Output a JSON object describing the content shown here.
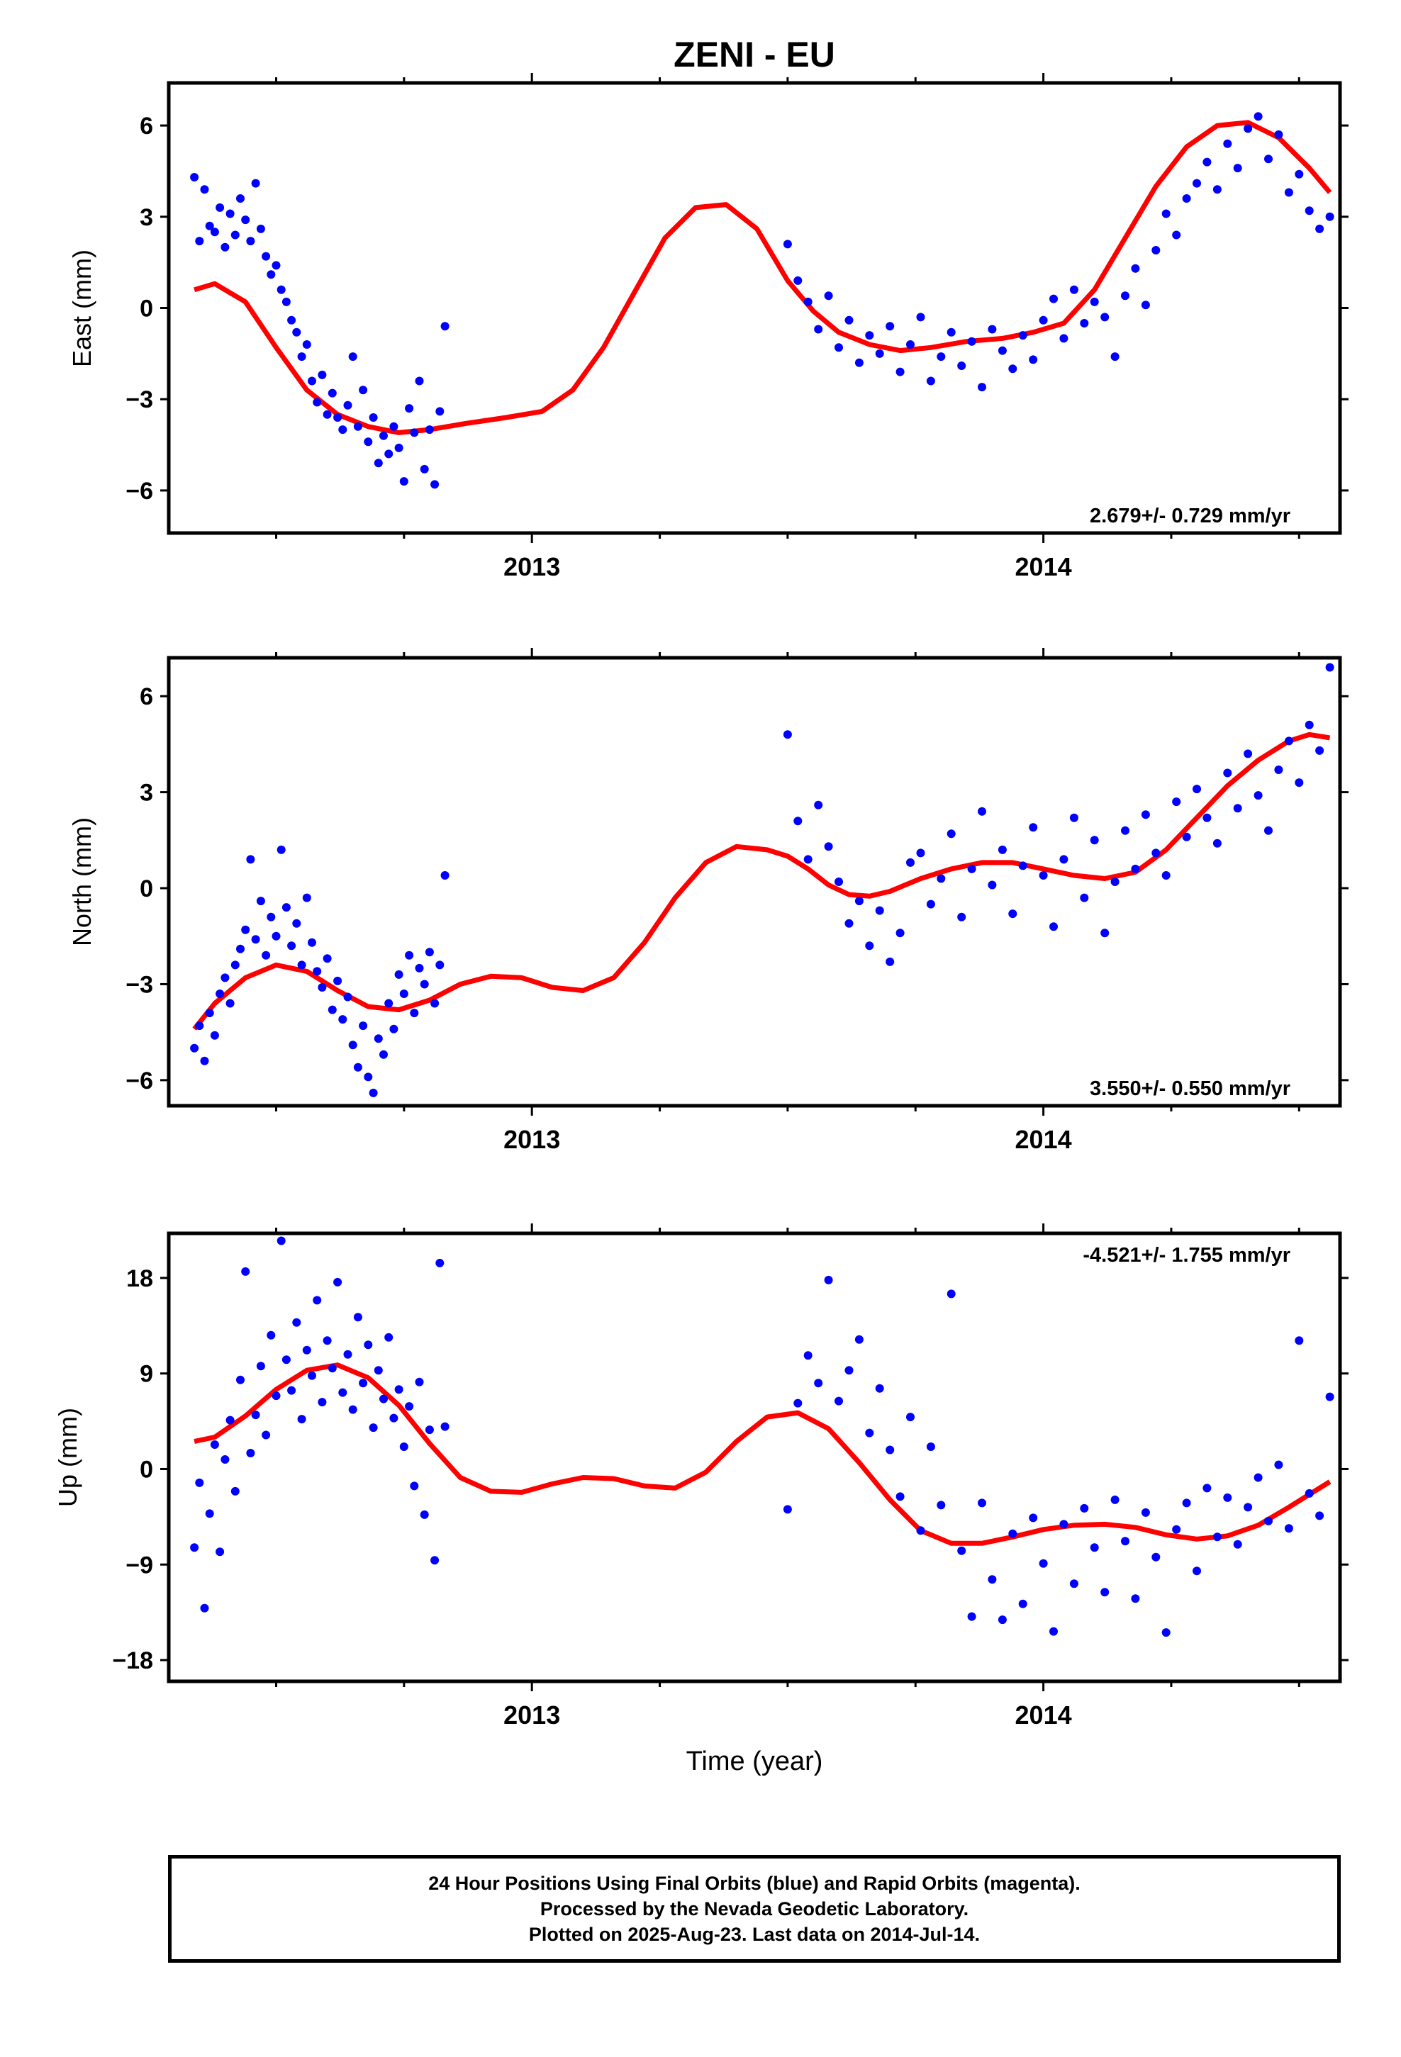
{
  "title": "ZENI - EU",
  "xlabel": "Time (year)",
  "colors": {
    "points": "#0000ff",
    "fit": "#ff0000",
    "frame": "#000000"
  },
  "footer": {
    "line1": "24 Hour Positions Using Final Orbits (blue) and Rapid Orbits (magenta).",
    "line2": "Processed by the Nevada Geodetic Laboratory.",
    "line3": "Plotted on 2025-Aug-23. Last data on 2014-Jul-14."
  },
  "chart_data": [
    {
      "type": "scatter",
      "component": "east",
      "ylabel": "East (mm)",
      "rate_label": "2.679+/- 0.729 mm/yr",
      "xlim": [
        2012.29,
        2014.58
      ],
      "ylim": [
        -7.4,
        7.4
      ],
      "yticks": [
        -6,
        -3,
        0,
        3,
        6
      ],
      "xticks": [
        2013,
        2014
      ],
      "rate_mm_per_yr": 2.679,
      "rate_sigma": 0.729,
      "fit_curve": {
        "x": [
          2012.34,
          2012.38,
          2012.44,
          2012.5,
          2012.56,
          2012.62,
          2012.68,
          2012.74,
          2012.8,
          2012.87,
          2012.95,
          2013.02,
          2013.08,
          2013.14,
          2013.2,
          2013.26,
          2013.32,
          2013.38,
          2013.44,
          2013.5,
          2013.55,
          2013.6,
          2013.66,
          2013.72,
          2013.78,
          2013.85,
          2013.92,
          2013.98,
          2014.04,
          2014.1,
          2014.16,
          2014.22,
          2014.28,
          2014.34,
          2014.4,
          2014.46,
          2014.52,
          2014.56
        ],
        "y": [
          0.6,
          0.8,
          0.2,
          -1.3,
          -2.7,
          -3.5,
          -3.9,
          -4.1,
          -4.0,
          -3.8,
          -3.6,
          -3.4,
          -2.7,
          -1.3,
          0.5,
          2.3,
          3.3,
          3.4,
          2.6,
          0.9,
          -0.1,
          -0.8,
          -1.2,
          -1.4,
          -1.3,
          -1.1,
          -1.0,
          -0.8,
          -0.5,
          0.6,
          2.3,
          4.0,
          5.3,
          6.0,
          6.1,
          5.6,
          4.6,
          3.8
        ]
      },
      "series": [
        {
          "x": [
            2012.34,
            2012.35,
            2012.36,
            2012.37,
            2012.38,
            2012.39,
            2012.4,
            2012.41,
            2012.42,
            2012.43,
            2012.44,
            2012.45,
            2012.46,
            2012.47,
            2012.48,
            2012.49,
            2012.5,
            2012.51,
            2012.52,
            2012.53,
            2012.54,
            2012.55,
            2012.56,
            2012.57,
            2012.58,
            2012.59,
            2012.6,
            2012.61,
            2012.62,
            2012.63,
            2012.64,
            2012.65,
            2012.66,
            2012.67,
            2012.68,
            2012.69,
            2012.7,
            2012.71,
            2012.72,
            2012.73,
            2012.74,
            2012.75,
            2012.76,
            2012.77,
            2012.78,
            2012.79,
            2012.8,
            2012.81,
            2012.82,
            2012.83,
            2013.5,
            2013.52,
            2013.54,
            2013.56,
            2013.58,
            2013.6,
            2013.62,
            2013.64,
            2013.66,
            2013.68,
            2013.7,
            2013.72,
            2013.74,
            2013.76,
            2013.78,
            2013.8,
            2013.82,
            2013.84,
            2013.86,
            2013.88,
            2013.9,
            2013.92,
            2013.94,
            2013.96,
            2013.98,
            2014.0,
            2014.02,
            2014.04,
            2014.06,
            2014.08,
            2014.1,
            2014.12,
            2014.14,
            2014.16,
            2014.18,
            2014.2,
            2014.22,
            2014.24,
            2014.26,
            2014.28,
            2014.3,
            2014.32,
            2014.34,
            2014.36,
            2014.38,
            2014.4,
            2014.42,
            2014.44,
            2014.46,
            2014.48,
            2014.5,
            2014.52,
            2014.54,
            2014.56
          ],
          "y": [
            4.3,
            2.2,
            3.9,
            2.7,
            2.5,
            3.3,
            2.0,
            3.1,
            2.4,
            3.6,
            2.9,
            2.2,
            4.1,
            2.6,
            1.7,
            1.1,
            1.4,
            0.6,
            0.2,
            -0.4,
            -0.8,
            -1.6,
            -1.2,
            -2.4,
            -3.1,
            -2.2,
            -3.5,
            -2.8,
            -3.6,
            -4.0,
            -3.2,
            -1.6,
            -3.9,
            -2.7,
            -4.4,
            -3.6,
            -5.1,
            -4.2,
            -4.8,
            -3.9,
            -4.6,
            -5.7,
            -3.3,
            -4.1,
            -2.4,
            -5.3,
            -4.0,
            -5.8,
            -3.4,
            -0.6,
            2.1,
            0.9,
            0.2,
            -0.7,
            0.4,
            -1.3,
            -0.4,
            -1.8,
            -0.9,
            -1.5,
            -0.6,
            -2.1,
            -1.2,
            -0.3,
            -2.4,
            -1.6,
            -0.8,
            -1.9,
            -1.1,
            -2.6,
            -0.7,
            -1.4,
            -2.0,
            -0.9,
            -1.7,
            -0.4,
            0.3,
            -1.0,
            0.6,
            -0.5,
            0.2,
            -0.3,
            -1.6,
            0.4,
            1.3,
            0.1,
            1.9,
            3.1,
            2.4,
            3.6,
            4.1,
            4.8,
            3.9,
            5.4,
            4.6,
            5.9,
            6.3,
            4.9,
            5.7,
            3.8,
            4.4,
            3.2,
            2.6,
            3.0
          ]
        }
      ]
    },
    {
      "type": "scatter",
      "component": "north",
      "ylabel": "North (mm)",
      "rate_label": "3.550+/- 0.550 mm/yr",
      "xlim": [
        2012.29,
        2014.58
      ],
      "ylim": [
        -6.8,
        7.2
      ],
      "yticks": [
        -6,
        -3,
        0,
        3,
        6
      ],
      "xticks": [
        2013,
        2014
      ],
      "rate_mm_per_yr": 3.55,
      "rate_sigma": 0.55,
      "fit_curve": {
        "x": [
          2012.34,
          2012.38,
          2012.44,
          2012.5,
          2012.56,
          2012.62,
          2012.68,
          2012.74,
          2012.8,
          2012.86,
          2012.92,
          2012.98,
          2013.04,
          2013.1,
          2013.16,
          2013.22,
          2013.28,
          2013.34,
          2013.4,
          2013.46,
          2013.5,
          2013.54,
          2013.58,
          2013.62,
          2013.66,
          2013.7,
          2013.76,
          2013.82,
          2013.88,
          2013.94,
          2014.0,
          2014.06,
          2014.12,
          2014.18,
          2014.24,
          2014.3,
          2014.36,
          2014.42,
          2014.48,
          2014.52,
          2014.56
        ],
        "y": [
          -4.4,
          -3.6,
          -2.8,
          -2.4,
          -2.6,
          -3.2,
          -3.7,
          -3.8,
          -3.5,
          -3.0,
          -2.75,
          -2.8,
          -3.1,
          -3.2,
          -2.8,
          -1.7,
          -0.3,
          0.8,
          1.3,
          1.2,
          1.0,
          0.6,
          0.1,
          -0.2,
          -0.25,
          -0.1,
          0.3,
          0.6,
          0.8,
          0.8,
          0.6,
          0.4,
          0.3,
          0.5,
          1.2,
          2.2,
          3.2,
          4.0,
          4.6,
          4.8,
          4.7
        ]
      },
      "series": [
        {
          "x": [
            2012.34,
            2012.35,
            2012.36,
            2012.37,
            2012.38,
            2012.39,
            2012.4,
            2012.41,
            2012.42,
            2012.43,
            2012.44,
            2012.45,
            2012.46,
            2012.47,
            2012.48,
            2012.49,
            2012.5,
            2012.51,
            2012.52,
            2012.53,
            2012.54,
            2012.55,
            2012.56,
            2012.57,
            2012.58,
            2012.59,
            2012.6,
            2012.61,
            2012.62,
            2012.63,
            2012.64,
            2012.65,
            2012.66,
            2012.67,
            2012.68,
            2012.69,
            2012.7,
            2012.71,
            2012.72,
            2012.73,
            2012.74,
            2012.75,
            2012.76,
            2012.77,
            2012.78,
            2012.79,
            2012.8,
            2012.81,
            2012.82,
            2012.83,
            2013.5,
            2013.52,
            2013.54,
            2013.56,
            2013.58,
            2013.6,
            2013.62,
            2013.64,
            2013.66,
            2013.68,
            2013.7,
            2013.72,
            2013.74,
            2013.76,
            2013.78,
            2013.8,
            2013.82,
            2013.84,
            2013.86,
            2013.88,
            2013.9,
            2013.92,
            2013.94,
            2013.96,
            2013.98,
            2014.0,
            2014.02,
            2014.04,
            2014.06,
            2014.08,
            2014.1,
            2014.12,
            2014.14,
            2014.16,
            2014.18,
            2014.2,
            2014.22,
            2014.24,
            2014.26,
            2014.28,
            2014.3,
            2014.32,
            2014.34,
            2014.36,
            2014.38,
            2014.4,
            2014.42,
            2014.44,
            2014.46,
            2014.48,
            2014.5,
            2014.52,
            2014.54,
            2014.56
          ],
          "y": [
            -5.0,
            -4.3,
            -5.4,
            -3.9,
            -4.6,
            -3.3,
            -2.8,
            -3.6,
            -2.4,
            -1.9,
            -1.3,
            0.9,
            -1.6,
            -0.4,
            -2.1,
            -0.9,
            -1.5,
            1.2,
            -0.6,
            -1.8,
            -1.1,
            -2.4,
            -0.3,
            -1.7,
            -2.6,
            -3.1,
            -2.2,
            -3.8,
            -2.9,
            -4.1,
            -3.4,
            -4.9,
            -5.6,
            -4.3,
            -5.9,
            -6.4,
            -4.7,
            -5.2,
            -3.6,
            -4.4,
            -2.7,
            -3.3,
            -2.1,
            -3.9,
            -2.5,
            -3.0,
            -2.0,
            -3.6,
            -2.4,
            0.4,
            4.8,
            2.1,
            0.9,
            2.6,
            1.3,
            0.2,
            -1.1,
            -0.4,
            -1.8,
            -0.7,
            -2.3,
            -1.4,
            0.8,
            1.1,
            -0.5,
            0.3,
            1.7,
            -0.9,
            0.6,
            2.4,
            0.1,
            1.2,
            -0.8,
            0.7,
            1.9,
            0.4,
            -1.2,
            0.9,
            2.2,
            -0.3,
            1.5,
            -1.4,
            0.2,
            1.8,
            0.6,
            2.3,
            1.1,
            0.4,
            2.7,
            1.6,
            3.1,
            2.2,
            1.4,
            3.6,
            2.5,
            4.2,
            2.9,
            1.8,
            3.7,
            4.6,
            3.3,
            5.1,
            4.3,
            6.9
          ]
        }
      ]
    },
    {
      "type": "scatter",
      "component": "up",
      "ylabel": "Up (mm)",
      "rate_label": "-4.521+/- 1.755 mm/yr",
      "xlim": [
        2012.29,
        2014.58
      ],
      "ylim": [
        -20,
        22.2
      ],
      "yticks": [
        -18,
        -9,
        0,
        9,
        18
      ],
      "xticks": [
        2013,
        2014
      ],
      "rate_mm_per_yr": -4.521,
      "rate_sigma": 1.755,
      "fit_curve": {
        "x": [
          2012.34,
          2012.38,
          2012.44,
          2012.5,
          2012.56,
          2012.62,
          2012.68,
          2012.74,
          2012.8,
          2012.86,
          2012.92,
          2012.98,
          2013.04,
          2013.1,
          2013.16,
          2013.22,
          2013.28,
          2013.34,
          2013.4,
          2013.46,
          2013.52,
          2013.58,
          2013.64,
          2013.7,
          2013.76,
          2013.82,
          2013.88,
          2013.94,
          2014.0,
          2014.06,
          2014.12,
          2014.18,
          2014.24,
          2014.3,
          2014.36,
          2014.42,
          2014.48,
          2014.52,
          2014.56
        ],
        "y": [
          2.6,
          3.0,
          5.0,
          7.5,
          9.3,
          9.8,
          8.6,
          6.0,
          2.4,
          -0.8,
          -2.1,
          -2.2,
          -1.4,
          -0.8,
          -0.9,
          -1.6,
          -1.8,
          -0.3,
          2.6,
          4.9,
          5.3,
          3.8,
          0.6,
          -2.9,
          -5.8,
          -7.0,
          -7.0,
          -6.4,
          -5.7,
          -5.3,
          -5.2,
          -5.5,
          -6.2,
          -6.6,
          -6.3,
          -5.3,
          -3.6,
          -2.4,
          -1.2
        ]
      },
      "series": [
        {
          "x": [
            2012.34,
            2012.35,
            2012.36,
            2012.37,
            2012.38,
            2012.39,
            2012.4,
            2012.41,
            2012.42,
            2012.43,
            2012.44,
            2012.45,
            2012.46,
            2012.47,
            2012.48,
            2012.49,
            2012.5,
            2012.51,
            2012.52,
            2012.53,
            2012.54,
            2012.55,
            2012.56,
            2012.57,
            2012.58,
            2012.59,
            2012.6,
            2012.61,
            2012.62,
            2012.63,
            2012.64,
            2012.65,
            2012.66,
            2012.67,
            2012.68,
            2012.69,
            2012.7,
            2012.71,
            2012.72,
            2012.73,
            2012.74,
            2012.75,
            2012.76,
            2012.77,
            2012.78,
            2012.79,
            2012.8,
            2012.81,
            2012.82,
            2012.83,
            2013.5,
            2013.52,
            2013.54,
            2013.56,
            2013.58,
            2013.6,
            2013.62,
            2013.64,
            2013.66,
            2013.68,
            2013.7,
            2013.72,
            2013.74,
            2013.76,
            2013.78,
            2013.8,
            2013.82,
            2013.84,
            2013.86,
            2013.88,
            2013.9,
            2013.92,
            2013.94,
            2013.96,
            2013.98,
            2014.0,
            2014.02,
            2014.04,
            2014.06,
            2014.08,
            2014.1,
            2014.12,
            2014.14,
            2014.16,
            2014.18,
            2014.2,
            2014.22,
            2014.24,
            2014.26,
            2014.28,
            2014.3,
            2014.32,
            2014.34,
            2014.36,
            2014.38,
            2014.4,
            2014.42,
            2014.44,
            2014.46,
            2014.48,
            2014.5,
            2014.52,
            2014.54,
            2014.56
          ],
          "y": [
            -7.4,
            -1.3,
            -13.1,
            -4.2,
            2.3,
            -7.8,
            0.9,
            4.6,
            -2.1,
            8.4,
            18.6,
            1.5,
            5.1,
            9.7,
            3.2,
            12.6,
            6.9,
            21.5,
            10.3,
            7.4,
            13.8,
            4.7,
            11.2,
            8.8,
            15.9,
            6.3,
            12.1,
            9.5,
            17.6,
            7.2,
            10.8,
            5.6,
            14.3,
            8.1,
            11.7,
            3.9,
            9.3,
            6.6,
            12.4,
            4.8,
            7.5,
            2.1,
            5.9,
            -1.6,
            8.2,
            -4.3,
            3.7,
            -8.6,
            19.4,
            4.0,
            -3.8,
            6.2,
            10.7,
            8.1,
            17.8,
            6.4,
            9.3,
            12.2,
            3.4,
            7.6,
            1.8,
            -2.6,
            4.9,
            -5.8,
            2.1,
            -3.4,
            16.5,
            -7.7,
            -13.9,
            -3.2,
            -10.4,
            -14.2,
            -6.1,
            -12.7,
            -4.6,
            -8.9,
            -15.3,
            -5.2,
            -10.8,
            -3.7,
            -7.4,
            -11.6,
            -2.9,
            -6.8,
            -12.2,
            -4.1,
            -8.3,
            -15.4,
            -5.7,
            -3.2,
            -9.6,
            -1.8,
            -6.4,
            -2.7,
            -7.1,
            -3.6,
            -0.8,
            -4.9,
            0.4,
            -5.6,
            12.1,
            -2.3,
            -4.4,
            6.8
          ]
        }
      ]
    }
  ]
}
